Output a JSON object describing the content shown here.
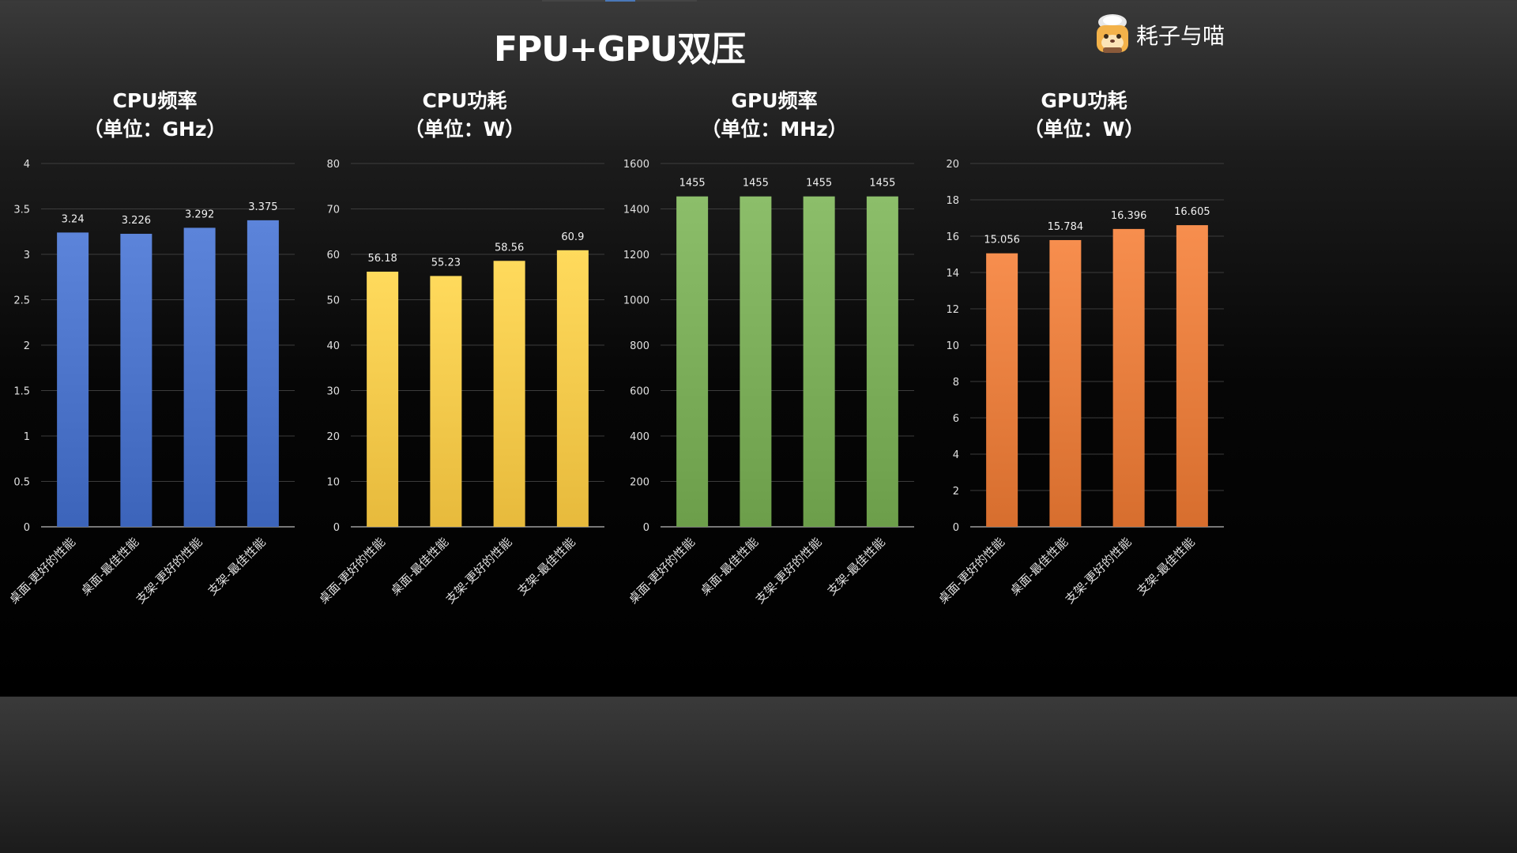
{
  "page": {
    "title": "FPU+GPU双压",
    "brand": "耗子与喵"
  },
  "colors": {
    "cpu_freq": "#4a72c8",
    "cpu_power": "#f5c84a",
    "gpu_freq": "#7aac58",
    "gpu_power": "#e57c3c"
  },
  "chart_data": [
    {
      "type": "bar",
      "title": "CPU频率",
      "subtitle": "（单位：GHz）",
      "categories": [
        "桌面-更好的性能",
        "桌面-最佳性能",
        "支架-更好的性能",
        "支架-最佳性能"
      ],
      "values": [
        3.24,
        3.226,
        3.292,
        3.375
      ],
      "value_labels": [
        "3.24",
        "3.226",
        "3.292",
        "3.375"
      ],
      "ylim": [
        0,
        4
      ],
      "yticks": [
        "0",
        "0.5",
        "1",
        "1.5",
        "2",
        "2.5",
        "3",
        "3.5",
        "4"
      ],
      "color": "#4a72c8",
      "grid": true
    },
    {
      "type": "bar",
      "title": "CPU功耗",
      "subtitle": "（单位：W）",
      "categories": [
        "桌面-更好的性能",
        "桌面-最佳性能",
        "支架-更好的性能",
        "支架-最佳性能"
      ],
      "values": [
        56.18,
        55.23,
        58.56,
        60.9
      ],
      "value_labels": [
        "56.18",
        "55.23",
        "58.56",
        "60.9"
      ],
      "ylim": [
        0,
        80
      ],
      "yticks": [
        "0",
        "10",
        "20",
        "30",
        "40",
        "50",
        "60",
        "70",
        "80"
      ],
      "color": "#f5c84a",
      "grid": true
    },
    {
      "type": "bar",
      "title": "GPU频率",
      "subtitle": "（单位：MHz）",
      "categories": [
        "桌面-更好的性能",
        "桌面-最佳性能",
        "支架-更好的性能",
        "支架-最佳性能"
      ],
      "values": [
        1455,
        1455,
        1455,
        1455
      ],
      "value_labels": [
        "1455",
        "1455",
        "1455",
        "1455"
      ],
      "ylim": [
        0,
        1600
      ],
      "yticks": [
        "0",
        "200",
        "400",
        "600",
        "800",
        "1000",
        "1200",
        "1400",
        "1600"
      ],
      "color": "#7aac58",
      "grid": true
    },
    {
      "type": "bar",
      "title": "GPU功耗",
      "subtitle": "（单位：W）",
      "categories": [
        "桌面-更好的性能",
        "桌面-最佳性能",
        "支架-更好的性能",
        "支架-最佳性能"
      ],
      "values": [
        15.056,
        15.784,
        16.396,
        16.605
      ],
      "value_labels": [
        "15.056",
        "15.784",
        "16.396",
        "16.605"
      ],
      "ylim": [
        0,
        20
      ],
      "yticks": [
        "0",
        "2",
        "4",
        "6",
        "8",
        "10",
        "12",
        "14",
        "16",
        "18",
        "20"
      ],
      "color": "#e57c3c",
      "grid": true
    }
  ]
}
